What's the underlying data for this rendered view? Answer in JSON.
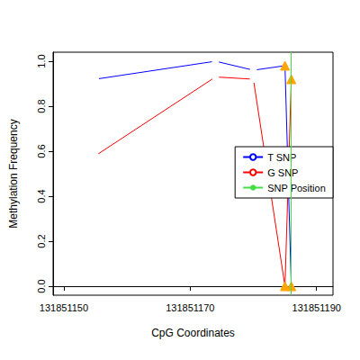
{
  "chart_data": {
    "type": "line",
    "xlabel": "CpG Coordinates",
    "ylabel": "Methylation Frequency",
    "xlim": [
      131851148.3,
      131851192.6
    ],
    "xticks": [
      131851150,
      131851170,
      131851190
    ],
    "ylim": [
      -0.04,
      1.04
    ],
    "yticks": [
      {
        "value": 0,
        "label": "0.0"
      },
      0.2,
      0.4,
      0.6,
      0.8,
      {
        "value": 1,
        "label": "1.0"
      }
    ],
    "legend": "right",
    "series": [
      {
        "name": "T SNP",
        "color": "#0000ff",
        "x": [
          131851155,
          131851174,
          131851180,
          131851185,
          131851186
        ],
        "values": [
          0.92,
          1.0,
          0.96,
          0.98,
          0.0
        ],
        "markers": [
          "circle",
          "circle",
          "circle",
          "triangle",
          "triangle"
        ],
        "colors": [
          "#0000ff",
          "#0000ff",
          "#0000ff",
          "#ffa500",
          "#ffa500"
        ]
      },
      {
        "name": "G SNP",
        "color": "#ff0000",
        "x": [
          131851155,
          131851174,
          131851180,
          131851185,
          131851186
        ],
        "values": [
          0.58,
          0.93,
          0.92,
          0.0,
          0.92
        ],
        "markers": [
          "circle",
          "circle",
          "circle",
          "triangle",
          "triangle"
        ],
        "colors": [
          "#ff0000",
          "#ff0000",
          "#ff0000",
          "#ffa500",
          "#ffa500"
        ]
      },
      {
        "name": "SNP Position",
        "type": "vline",
        "color": "#44dd44",
        "x": [
          131851186
        ]
      }
    ]
  }
}
